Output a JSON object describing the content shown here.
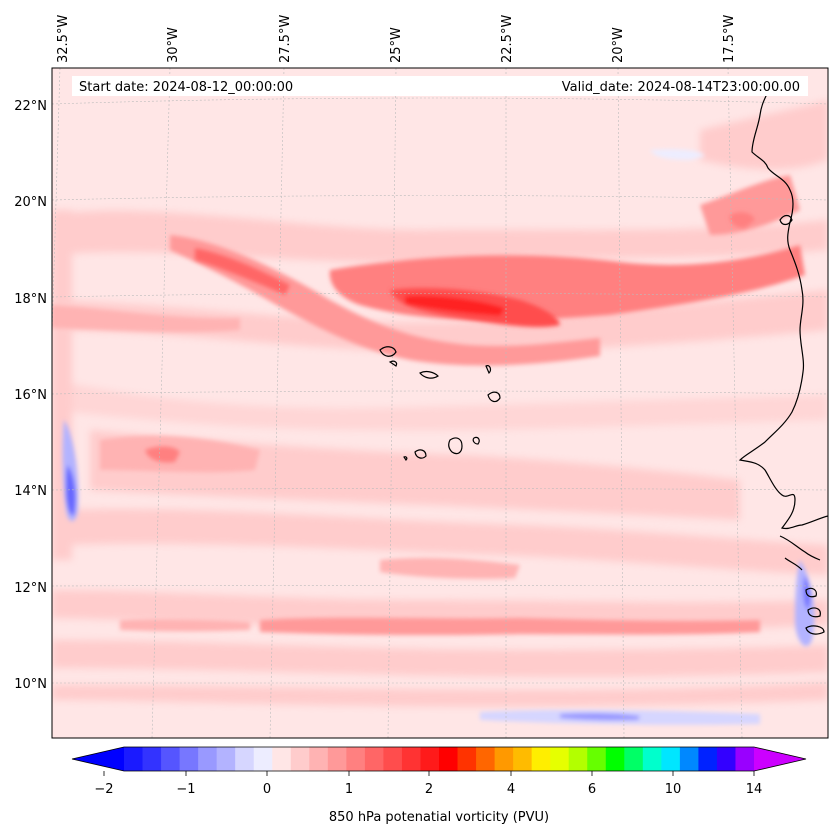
{
  "map": {
    "top_start_date": "Start date: 2024-08-12_00:00:00",
    "top_valid_date": "Valid_date: 2024-08-14T23:00:00.00",
    "lon_labels": [
      "32.5°W",
      "30°W",
      "27.5°W",
      "25°W",
      "22.5°W",
      "20°W",
      "17.5°W"
    ],
    "lat_labels": [
      "22°N",
      "20°N",
      "18°N",
      "16°N",
      "14°N",
      "12°N",
      "10°N"
    ],
    "variable": "850 hPa potenatial vorticity (PVU)"
  },
  "colorbar": {
    "tick_labels": [
      "−2",
      "−1",
      "0",
      "1",
      "2",
      "4",
      "6",
      "10",
      "14"
    ],
    "label": "850 hPa potenatial vorticity (PVU)",
    "colors": [
      "#1a1aff",
      "#3333ff",
      "#5555ff",
      "#7777ff",
      "#9999ff",
      "#b3b3ff",
      "#d6d6ff",
      "#ededff",
      "#ffe6e6",
      "#ffcccc",
      "#ffb3b3",
      "#ff9999",
      "#ff8080",
      "#ff6666",
      "#ff4d4d",
      "#ff3333",
      "#ff1a1a",
      "#ff0000",
      "#ff3300",
      "#ff6600",
      "#ff9900",
      "#ffbb00",
      "#ffee00",
      "#e6ff00",
      "#b3ff00",
      "#66ff00",
      "#00ff00",
      "#00ff66",
      "#00ffcc",
      "#00e6ff",
      "#0088ff",
      "#0022ff",
      "#3300ff",
      "#9900ff"
    ],
    "extend_low": "#0000ff",
    "extend_high": "#cc00ff"
  }
}
